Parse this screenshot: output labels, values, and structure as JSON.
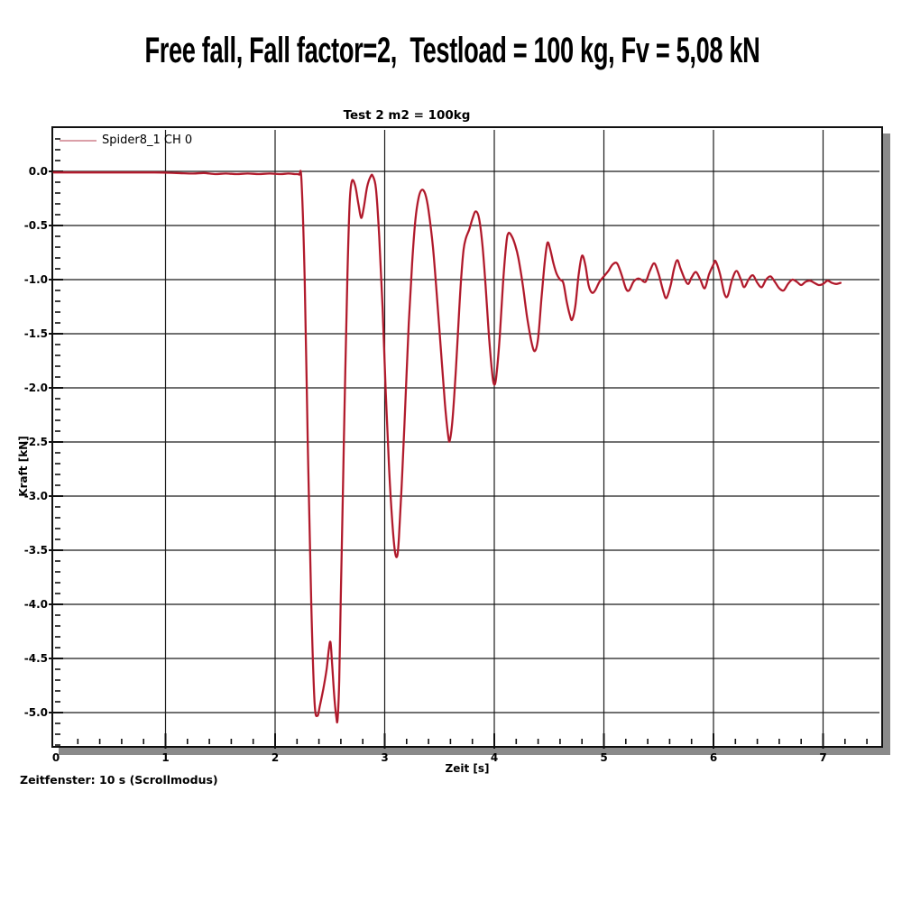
{
  "page_title": "Free fall, Fall factor=2,  Testload = 100 kg, Fv = 5,08 kN",
  "chart": {
    "title": "Test 2 m2 = 100kg",
    "legend": {
      "label": "Spider8_1 CH 0"
    },
    "x_axis": {
      "label": "Zeit [s]",
      "tick_values": [
        0,
        1,
        2,
        3,
        4,
        5,
        6,
        7
      ],
      "tick_labels": [
        "0",
        "1",
        "2",
        "3",
        "4",
        "5",
        "6",
        "7"
      ],
      "minor_step": 0.2,
      "range": [
        0,
        7.53
      ]
    },
    "y_axis": {
      "label": "Kraft [kN]",
      "tick_values": [
        0,
        -0.5,
        -1,
        -1.5,
        -2,
        -2.5,
        -3,
        -3.5,
        -4,
        -4.5,
        -5
      ],
      "tick_labels": [
        "0.0",
        "-0.5",
        "-1.0",
        "-1.5",
        "-2.0",
        "-2.5",
        "-3.0",
        "-3.5",
        "-4.0",
        "-4.5",
        "-5.0"
      ],
      "minor_step": 0.1,
      "range": [
        -5.31,
        0.4
      ]
    },
    "status_text": "Zeitfenster: 10 s (Scrollmodus)",
    "colors": {
      "series": "#c4202e",
      "series_core": "#7a1230",
      "legend_swatch": "#dba0a8",
      "grid": "#1b1b1b",
      "frame": "#101010",
      "shadow": "#8a8a8a"
    }
  },
  "chart_data": {
    "type": "line",
    "title": "Test 2 m2 = 100kg",
    "xlabel": "Zeit [s]",
    "ylabel": "Kraft [kN]",
    "xlim": [
      0,
      7.53
    ],
    "ylim": [
      -5.31,
      0.4
    ],
    "grid": true,
    "legend_position": "top-left",
    "series": [
      {
        "name": "Spider8_1 CH 0",
        "color": "#c4202e",
        "x": [
          -0.02,
          0.3,
          0.6,
          0.9,
          1.1,
          1.25,
          1.35,
          1.45,
          1.55,
          1.65,
          1.75,
          1.85,
          1.95,
          2.05,
          2.12,
          2.18,
          2.22,
          2.24,
          2.27,
          2.3,
          2.33,
          2.36,
          2.385,
          2.41,
          2.44,
          2.47,
          2.49,
          2.505,
          2.52,
          2.54,
          2.56,
          2.57,
          2.585,
          2.6,
          2.62,
          2.64,
          2.66,
          2.68,
          2.7,
          2.73,
          2.76,
          2.785,
          2.81,
          2.84,
          2.87,
          2.89,
          2.92,
          2.95,
          2.98,
          3.01,
          3.04,
          3.07,
          3.095,
          3.115,
          3.13,
          3.16,
          3.19,
          3.22,
          3.25,
          3.28,
          3.31,
          3.34,
          3.37,
          3.4,
          3.44,
          3.48,
          3.52,
          3.55,
          3.58,
          3.595,
          3.62,
          3.65,
          3.68,
          3.7,
          3.72,
          3.74,
          3.77,
          3.8,
          3.83,
          3.86,
          3.89,
          3.92,
          3.95,
          3.98,
          4.0,
          4.02,
          4.05,
          4.08,
          4.11,
          4.13,
          4.16,
          4.19,
          4.22,
          4.26,
          4.3,
          4.34,
          4.37,
          4.4,
          4.43,
          4.46,
          4.485,
          4.51,
          4.54,
          4.57,
          4.6,
          4.63,
          4.66,
          4.69,
          4.71,
          4.74,
          4.77,
          4.8,
          4.83,
          4.86,
          4.89,
          4.92,
          4.96,
          5.0,
          5.04,
          5.08,
          5.12,
          5.16,
          5.2,
          5.23,
          5.27,
          5.31,
          5.34,
          5.38,
          5.42,
          5.46,
          5.5,
          5.54,
          5.57,
          5.61,
          5.64,
          5.67,
          5.7,
          5.74,
          5.77,
          5.8,
          5.84,
          5.88,
          5.92,
          5.96,
          6.0,
          6.02,
          6.06,
          6.1,
          6.13,
          6.17,
          6.21,
          6.25,
          6.28,
          6.32,
          6.36,
          6.4,
          6.44,
          6.48,
          6.52,
          6.56,
          6.6,
          6.64,
          6.68,
          6.72,
          6.76,
          6.8,
          6.84,
          6.88,
          6.92,
          6.96,
          7.0,
          7.04,
          7.08,
          7.12,
          7.16
        ],
        "y": [
          -0.01,
          -0.01,
          -0.01,
          -0.01,
          -0.015,
          -0.02,
          -0.015,
          -0.025,
          -0.02,
          -0.025,
          -0.02,
          -0.025,
          -0.02,
          -0.025,
          -0.02,
          -0.025,
          -0.03,
          -0.08,
          -1.0,
          -2.6,
          -4.0,
          -4.9,
          -5.03,
          -4.93,
          -4.78,
          -4.6,
          -4.42,
          -4.35,
          -4.55,
          -4.85,
          -5.05,
          -5.06,
          -4.7,
          -3.9,
          -2.9,
          -1.85,
          -0.95,
          -0.3,
          -0.09,
          -0.13,
          -0.3,
          -0.43,
          -0.33,
          -0.14,
          -0.05,
          -0.04,
          -0.16,
          -0.6,
          -1.25,
          -2.05,
          -2.75,
          -3.25,
          -3.52,
          -3.55,
          -3.38,
          -2.8,
          -2.1,
          -1.4,
          -0.85,
          -0.45,
          -0.24,
          -0.17,
          -0.21,
          -0.36,
          -0.7,
          -1.2,
          -1.75,
          -2.15,
          -2.45,
          -2.48,
          -2.28,
          -1.82,
          -1.28,
          -0.95,
          -0.72,
          -0.62,
          -0.54,
          -0.44,
          -0.37,
          -0.43,
          -0.66,
          -1.05,
          -1.5,
          -1.86,
          -1.97,
          -1.88,
          -1.52,
          -1.03,
          -0.66,
          -0.57,
          -0.6,
          -0.68,
          -0.8,
          -1.05,
          -1.35,
          -1.58,
          -1.66,
          -1.54,
          -1.18,
          -0.84,
          -0.66,
          -0.72,
          -0.85,
          -0.95,
          -1.0,
          -1.03,
          -1.2,
          -1.33,
          -1.37,
          -1.24,
          -0.95,
          -0.78,
          -0.86,
          -1.05,
          -1.12,
          -1.1,
          -1.02,
          -0.97,
          -0.92,
          -0.86,
          -0.85,
          -0.95,
          -1.08,
          -1.1,
          -1.02,
          -0.99,
          -1.0,
          -1.02,
          -0.92,
          -0.85,
          -0.95,
          -1.1,
          -1.17,
          -1.05,
          -0.9,
          -0.82,
          -0.9,
          -1.0,
          -1.04,
          -0.98,
          -0.93,
          -1.0,
          -1.08,
          -0.95,
          -0.86,
          -0.83,
          -0.95,
          -1.13,
          -1.15,
          -1.0,
          -0.92,
          -1.0,
          -1.07,
          -1.0,
          -0.96,
          -1.03,
          -1.07,
          -1.0,
          -0.97,
          -1.02,
          -1.08,
          -1.1,
          -1.04,
          -1.0,
          -1.02,
          -1.05,
          -1.02,
          -1.01,
          -1.03,
          -1.05,
          -1.04,
          -1.01,
          -1.03,
          -1.04,
          -1.03
        ]
      }
    ]
  }
}
